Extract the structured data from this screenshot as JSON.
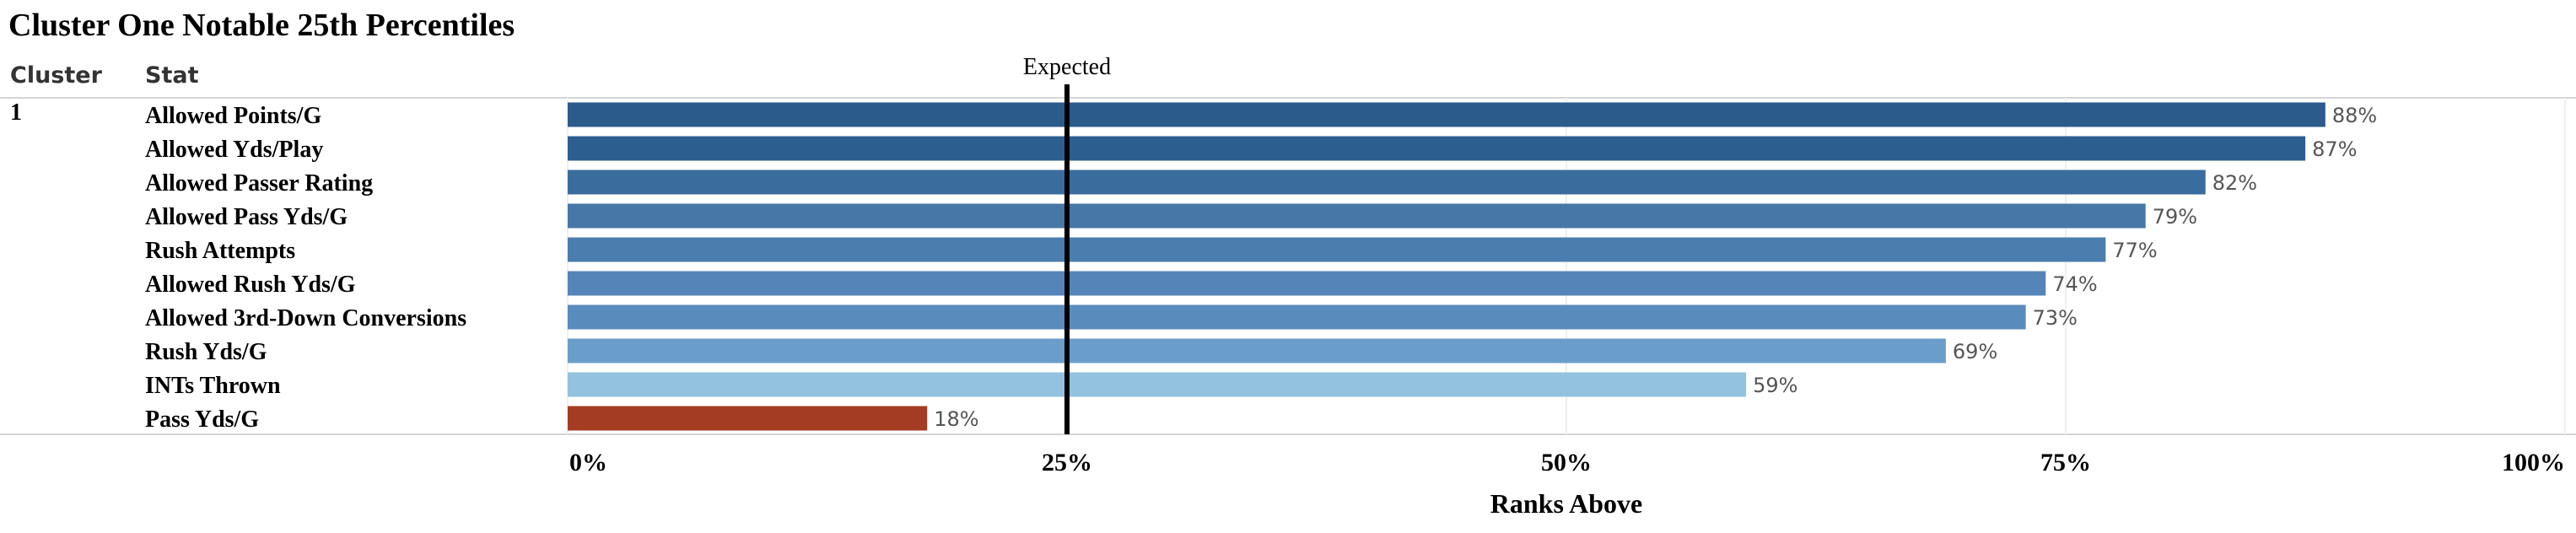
{
  "chart_data": {
    "type": "bar",
    "orientation": "horizontal",
    "title": "Cluster One Notable 25th Percentiles",
    "column_headers": {
      "cluster": "Cluster",
      "stat": "Stat"
    },
    "cluster": "1",
    "categories": [
      "Allowed Points/G",
      "Allowed Yds/Play",
      "Allowed Passer Rating",
      "Allowed Pass Yds/G",
      "Rush Attempts",
      "Allowed Rush Yds/G",
      "Allowed 3rd-Down Conversions",
      "Rush Yds/G",
      "INTs Thrown",
      "Pass Yds/G"
    ],
    "values": [
      88,
      87,
      82,
      79,
      77,
      74,
      73,
      69,
      59,
      18
    ],
    "value_labels": [
      "88%",
      "87%",
      "82%",
      "79%",
      "77%",
      "74%",
      "73%",
      "69%",
      "59%",
      "18%"
    ],
    "colors": [
      "#2a5b8b",
      "#2c5f90",
      "#3a6c9e",
      "#4677a7",
      "#4b7dae",
      "#5585b8",
      "#5a8bbd",
      "#6b9dcb",
      "#93c2e0",
      "#a33c22"
    ],
    "xlabel": "Ranks Above",
    "ylabel": "",
    "xlim": [
      0,
      100
    ],
    "x_ticks": [
      0,
      25,
      50,
      75,
      100
    ],
    "x_tick_labels": [
      "0%",
      "25%",
      "50%",
      "75%",
      "100%"
    ],
    "reference_line": {
      "value": 25,
      "label": "Expected",
      "color": "#000000"
    },
    "grid": true,
    "legend": "none"
  }
}
